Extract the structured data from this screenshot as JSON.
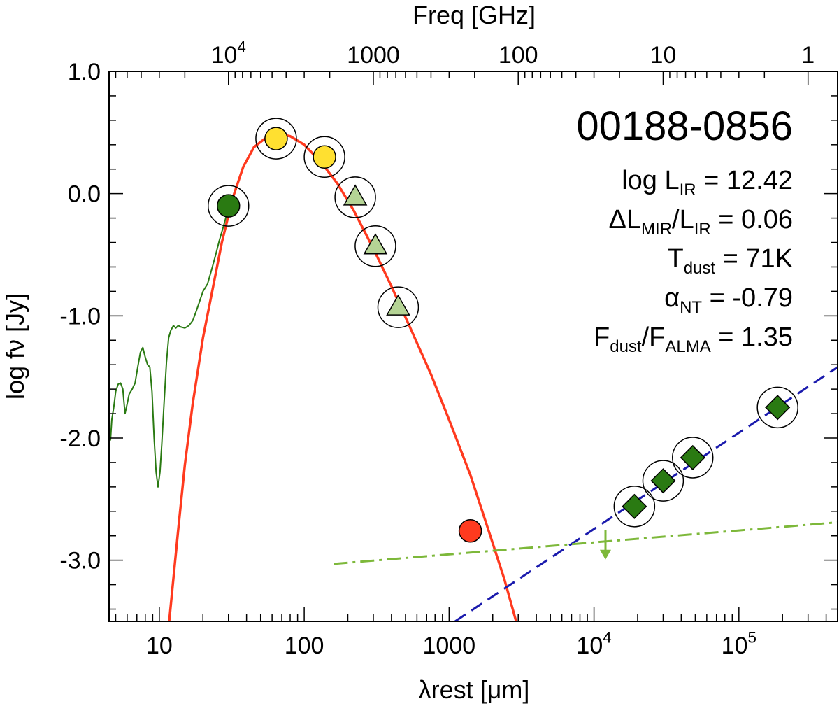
{
  "chart_data": {
    "type": "scatter",
    "title": "00188-0856",
    "xlabel": "λrest [μm]",
    "ylabel": "log fν [Jy]",
    "top_xlabel": "Freq [GHz]",
    "x_scale": "log",
    "xlim": [
      4.5,
      480000
    ],
    "ylim": [
      -3.5,
      1.0
    ],
    "x_ticks": [
      {
        "value": 10,
        "label": "10"
      },
      {
        "value": 100,
        "label": "100"
      },
      {
        "value": 1000,
        "label": "1000"
      },
      {
        "value": 10000,
        "label": "10^4"
      },
      {
        "value": 100000,
        "label": "10^5"
      }
    ],
    "y_ticks": [
      {
        "value": 1.0,
        "label": "1.0"
      },
      {
        "value": 0.0,
        "label": "0.0"
      },
      {
        "value": -1.0,
        "label": "-1.0"
      },
      {
        "value": -2.0,
        "label": "-2.0"
      },
      {
        "value": -3.0,
        "label": "-3.0"
      }
    ],
    "top_ticks": [
      {
        "value": 10000,
        "label": "10^4"
      },
      {
        "value": 1000,
        "label": "1000"
      },
      {
        "value": 100,
        "label": "100"
      },
      {
        "value": 10,
        "label": "10"
      },
      {
        "value": 1,
        "label": "1"
      }
    ],
    "annotations": [
      {
        "base": "log L",
        "sub": "IR",
        "tail": " = 12.42"
      },
      {
        "base": "ΔL",
        "sub": "MIR",
        "mid": "/L",
        "sub2": "IR",
        "tail": " = 0.06"
      },
      {
        "base": "T",
        "sub": "dust",
        "tail": " = 71K"
      },
      {
        "base": "α",
        "sub": "NT",
        "tail": " = -0.79"
      },
      {
        "base": "F",
        "sub": "dust",
        "mid": "/F",
        "sub2": "ALMA",
        "tail": " = 1.35"
      }
    ],
    "series": [
      {
        "kind": "spectrum",
        "color": "#2a7a12",
        "points": [
          [
            4.6,
            -2.02
          ],
          [
            4.7,
            -1.85
          ],
          [
            4.85,
            -1.75
          ],
          [
            5.0,
            -1.62
          ],
          [
            5.2,
            -1.56
          ],
          [
            5.4,
            -1.55
          ],
          [
            5.6,
            -1.6
          ],
          [
            5.8,
            -1.8
          ],
          [
            6.0,
            -1.72
          ],
          [
            6.2,
            -1.64
          ],
          [
            6.5,
            -1.6
          ],
          [
            6.8,
            -1.55
          ],
          [
            7.1,
            -1.42
          ],
          [
            7.4,
            -1.3
          ],
          [
            7.7,
            -1.26
          ],
          [
            8.0,
            -1.34
          ],
          [
            8.3,
            -1.4
          ],
          [
            8.6,
            -1.42
          ],
          [
            8.9,
            -1.62
          ],
          [
            9.2,
            -2.0
          ],
          [
            9.5,
            -2.28
          ],
          [
            9.8,
            -2.4
          ],
          [
            10.1,
            -2.28
          ],
          [
            10.4,
            -2.05
          ],
          [
            10.8,
            -1.7
          ],
          [
            11.2,
            -1.38
          ],
          [
            11.6,
            -1.18
          ],
          [
            12.0,
            -1.12
          ],
          [
            12.5,
            -1.08
          ],
          [
            13.0,
            -1.1
          ],
          [
            13.5,
            -1.08
          ],
          [
            14.0,
            -1.09
          ],
          [
            15.0,
            -1.1
          ],
          [
            16.0,
            -1.08
          ],
          [
            17.0,
            -1.04
          ],
          [
            18.0,
            -0.96
          ],
          [
            19.0,
            -0.88
          ],
          [
            20.0,
            -0.8
          ],
          [
            21.5,
            -0.74
          ],
          [
            23.0,
            -0.62
          ],
          [
            24.5,
            -0.5
          ],
          [
            26.0,
            -0.38
          ],
          [
            28.0,
            -0.25
          ],
          [
            30.0,
            -0.12
          ],
          [
            31.0,
            -0.07
          ]
        ]
      },
      {
        "kind": "dust-model",
        "color": "#ff3a1f",
        "points": [
          [
            11.7,
            -3.5
          ],
          [
            12.5,
            -3.15
          ],
          [
            13.5,
            -2.75
          ],
          [
            15,
            -2.22
          ],
          [
            17,
            -1.72
          ],
          [
            20,
            -1.18
          ],
          [
            23,
            -0.82
          ],
          [
            27,
            -0.4
          ],
          [
            32,
            -0.04
          ],
          [
            38,
            0.22
          ],
          [
            45,
            0.38
          ],
          [
            55,
            0.46
          ],
          [
            65,
            0.49
          ],
          [
            80,
            0.47
          ],
          [
            100,
            0.4
          ],
          [
            130,
            0.26
          ],
          [
            170,
            0.08
          ],
          [
            220,
            -0.14
          ],
          [
            300,
            -0.45
          ],
          [
            400,
            -0.76
          ],
          [
            550,
            -1.12
          ],
          [
            750,
            -1.48
          ],
          [
            1000,
            -1.85
          ],
          [
            1400,
            -2.3
          ],
          [
            1900,
            -2.78
          ],
          [
            2400,
            -3.15
          ],
          [
            2900,
            -3.5
          ]
        ]
      },
      {
        "kind": "synchrotron",
        "color": "#1a1aad",
        "points": [
          [
            1100,
            -3.5
          ],
          [
            480000,
            -1.42
          ]
        ]
      },
      {
        "kind": "upper-limit-line",
        "color": "#7db83a",
        "points": [
          [
            160,
            -3.03
          ],
          [
            480000,
            -2.69
          ]
        ]
      },
      {
        "kind": "markers",
        "points": [
          {
            "x": 30,
            "y": -0.1,
            "shape": "circle",
            "fill": "#2a7a12",
            "ring": true
          },
          {
            "x": 64,
            "y": 0.45,
            "shape": "circle",
            "fill": "#ffe030",
            "ring": true
          },
          {
            "x": 138,
            "y": 0.3,
            "shape": "circle",
            "fill": "#ffe030",
            "ring": true
          },
          {
            "x": 225,
            "y": -0.03,
            "shape": "triangle",
            "fill": "#b5d495",
            "ring": true
          },
          {
            "x": 310,
            "y": -0.43,
            "shape": "triangle",
            "fill": "#b5d495",
            "ring": true
          },
          {
            "x": 445,
            "y": -0.93,
            "shape": "triangle",
            "fill": "#b5d495",
            "ring": true
          },
          {
            "x": 1400,
            "y": -2.76,
            "shape": "circle",
            "fill": "#ff3a1f",
            "ring": false
          },
          {
            "x": 19000,
            "y": -2.56,
            "shape": "diamond",
            "fill": "#2a7a12",
            "ring": true
          },
          {
            "x": 30000,
            "y": -2.35,
            "shape": "diamond",
            "fill": "#2a7a12",
            "ring": true
          },
          {
            "x": 48000,
            "y": -2.16,
            "shape": "diamond",
            "fill": "#2a7a12",
            "ring": true
          },
          {
            "x": 185000,
            "y": -1.75,
            "shape": "diamond",
            "fill": "#2a7a12",
            "ring": true
          }
        ]
      },
      {
        "kind": "upper-limit-arrow",
        "color": "#7db83a",
        "x": 12000,
        "y": -2.88
      }
    ]
  }
}
